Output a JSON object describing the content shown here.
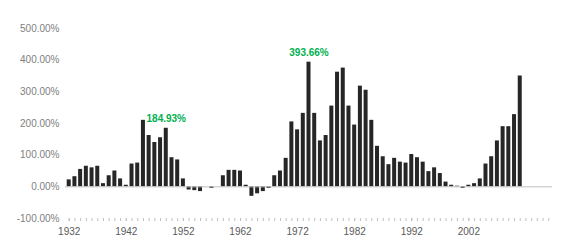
{
  "chart_data": {
    "type": "bar",
    "categories": [
      "1932",
      null,
      null,
      null,
      null,
      null,
      null,
      null,
      null,
      null,
      "1942",
      null,
      null,
      null,
      null,
      null,
      null,
      null,
      null,
      null,
      "1952",
      null,
      null,
      null,
      null,
      null,
      null,
      null,
      null,
      null,
      "1962",
      null,
      null,
      null,
      null,
      null,
      null,
      null,
      null,
      null,
      "1972",
      null,
      null,
      null,
      null,
      null,
      null,
      null,
      null,
      null,
      "1982",
      null,
      null,
      null,
      null,
      null,
      null,
      null,
      null,
      null,
      "1992",
      null,
      null,
      null,
      null,
      null,
      null,
      null,
      null,
      null,
      "2002",
      null,
      null,
      null,
      null,
      null,
      null,
      null,
      null,
      null,
      null,
      null,
      null,
      null,
      null
    ],
    "values": [
      22,
      32,
      55,
      65,
      60,
      65,
      10,
      35,
      50,
      25,
      5,
      72,
      75,
      210,
      162,
      140,
      155,
      184.93,
      92,
      85,
      25,
      -10,
      -12,
      -15,
      0,
      -5,
      0,
      35,
      52,
      52,
      50,
      5,
      -30,
      -22,
      -15,
      -5,
      35,
      50,
      90,
      205,
      180,
      232,
      393.66,
      232,
      145,
      162,
      255,
      362,
      375,
      255,
      195,
      318,
      305,
      210,
      128,
      95,
      70,
      90,
      78,
      75,
      102,
      92,
      78,
      48,
      60,
      42,
      15,
      5,
      2,
      -5,
      5,
      10,
      25,
      72,
      95,
      145,
      190,
      190,
      228,
      350,
      null,
      null,
      null,
      null,
      null
    ],
    "color": "#262626",
    "ylim": [
      -100,
      500
    ],
    "yticks": [
      {
        "value": -100,
        "label": "-100.00%"
      },
      {
        "value": 0,
        "label": "0.00%"
      },
      {
        "value": 100,
        "label": "100.00%"
      },
      {
        "value": 200,
        "label": "200.00%"
      },
      {
        "value": 300,
        "label": "300.00%"
      },
      {
        "value": 400,
        "label": "400.00%"
      },
      {
        "value": 500,
        "label": "500.00%"
      }
    ],
    "annotations": [
      {
        "text": "184.93%",
        "value": 184.93
      },
      {
        "text": "393.66%",
        "value": 393.66
      }
    ],
    "grid": false
  }
}
